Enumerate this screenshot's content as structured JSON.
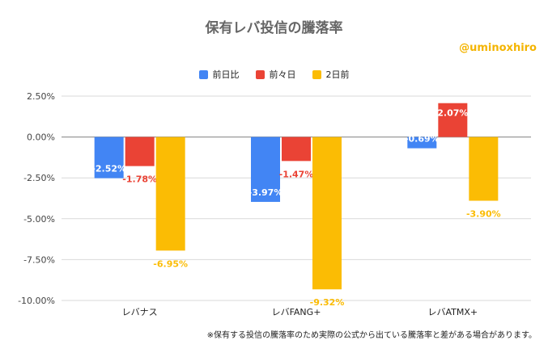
{
  "title": "保有レバ投信の騰落率",
  "handle": "@uminoxhiro",
  "footnote": "※保有する投信の騰落率のため実際の公式から出ている騰落率と差がある場合があります。",
  "chart_data": {
    "type": "bar",
    "categories": [
      "レバナス",
      "レバFANG+",
      "レバATMX+"
    ],
    "series": [
      {
        "name": "前日比",
        "color": "#4285f4",
        "values": [
          -2.52,
          -3.97,
          -0.69
        ],
        "labels": [
          "-2.52%",
          "-3.97%",
          "-0.69%"
        ]
      },
      {
        "name": "前々日",
        "color": "#ea4335",
        "values": [
          -1.78,
          -1.47,
          2.07
        ],
        "labels": [
          "-1.78%",
          "-1.47%",
          "2.07%"
        ]
      },
      {
        "name": "2日前",
        "color": "#fbbc04",
        "values": [
          -6.95,
          -9.32,
          -3.9
        ],
        "labels": [
          "-6.95%",
          "-9.32%",
          "-3.90%"
        ]
      }
    ],
    "ylim": [
      -10,
      2.5
    ],
    "yticks": [
      "2.50%",
      "0.00%",
      "-2.50%",
      "-5.00%",
      "-7.50%",
      "-10.00%"
    ],
    "ytick_values": [
      2.5,
      0,
      -2.5,
      -5,
      -7.5,
      -10
    ],
    "grid": true,
    "legend_position": "top"
  }
}
